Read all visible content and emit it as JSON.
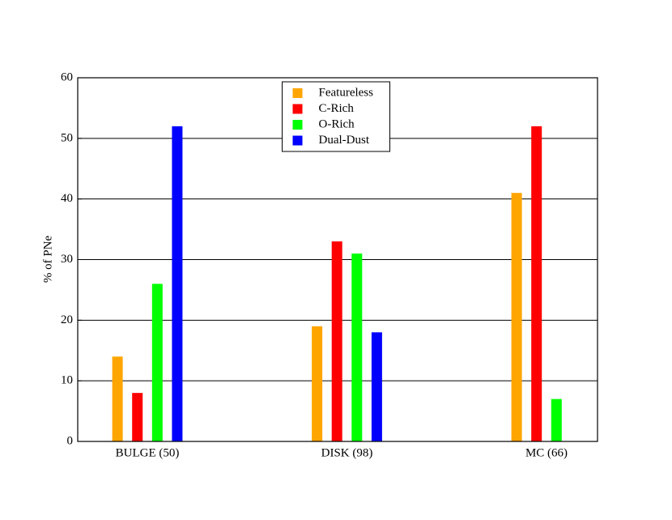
{
  "chart_data": {
    "type": "bar",
    "categories": [
      "BULGE (50)",
      "DISK (98)",
      "MC (66)"
    ],
    "y_label": "% of PNe",
    "series": [
      {
        "name": "Featureless",
        "color": "#ffa500",
        "values": [
          14,
          19,
          41
        ]
      },
      {
        "name": "C-Rich",
        "color": "#ff0000",
        "values": [
          8,
          33,
          52
        ]
      },
      {
        "name": "O-Rich",
        "color": "#00ff00",
        "values": [
          26,
          31,
          7
        ]
      },
      {
        "name": "Dual-Dust",
        "color": "#0000ff",
        "values": [
          52,
          18,
          0
        ]
      }
    ],
    "ylim": [
      0,
      60
    ],
    "yticks": [
      0,
      10,
      20,
      30,
      40,
      50,
      60
    ],
    "grid": true,
    "legend": "upper center"
  }
}
